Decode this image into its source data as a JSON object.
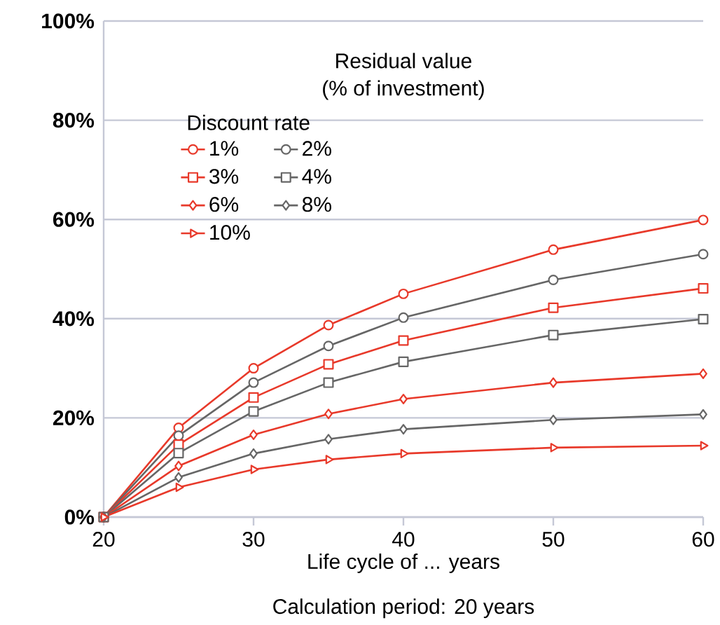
{
  "chart_data": {
    "type": "line",
    "title": "Residual value",
    "subtitle": "(% of investment)",
    "xlabel": "Life cycle of ... years",
    "annotations": [
      "Calculation period: 20 years"
    ],
    "legend_title": "Discount rate",
    "legend": "top left",
    "grid": "y",
    "line_style": "solid",
    "x": [
      20,
      25,
      30,
      35,
      40,
      50,
      60
    ],
    "xlim": [
      20,
      60
    ],
    "xticks": [
      20,
      30,
      40,
      50,
      60
    ],
    "ylim": [
      0,
      100
    ],
    "yticks": [
      {
        "value": 0,
        "label": "0%"
      },
      {
        "value": 20,
        "label": "20%"
      },
      {
        "value": 40,
        "label": "40%"
      },
      {
        "value": 60,
        "label": "60%"
      },
      {
        "value": 80,
        "label": "80%"
      },
      {
        "value": 100,
        "label": "100%"
      }
    ],
    "series": [
      {
        "name": "1%",
        "color": "#e8392a",
        "marker": "circle",
        "values": [
          0,
          18.0,
          30.0,
          38.7,
          45.0,
          53.9,
          59.9
        ]
      },
      {
        "name": "2%",
        "color": "#666666",
        "marker": "circle",
        "values": [
          0,
          16.4,
          27.1,
          34.5,
          40.2,
          47.8,
          53.0
        ]
      },
      {
        "name": "3%",
        "color": "#e8392a",
        "marker": "square",
        "values": [
          0,
          14.6,
          24.1,
          30.8,
          35.6,
          42.2,
          46.1
        ]
      },
      {
        "name": "4%",
        "color": "#666666",
        "marker": "square",
        "values": [
          0,
          12.9,
          21.3,
          27.1,
          31.3,
          36.7,
          39.9
        ]
      },
      {
        "name": "6%",
        "color": "#e8392a",
        "marker": "diamond",
        "values": [
          0,
          10.3,
          16.6,
          20.8,
          23.8,
          27.1,
          28.9
        ]
      },
      {
        "name": "8%",
        "color": "#666666",
        "marker": "diamond",
        "values": [
          0,
          8.0,
          12.8,
          15.7,
          17.7,
          19.6,
          20.7
        ]
      },
      {
        "name": "10%",
        "color": "#e8392a",
        "marker": "triangle",
        "values": [
          0,
          6.0,
          9.6,
          11.6,
          12.8,
          14.0,
          14.4
        ]
      }
    ]
  }
}
